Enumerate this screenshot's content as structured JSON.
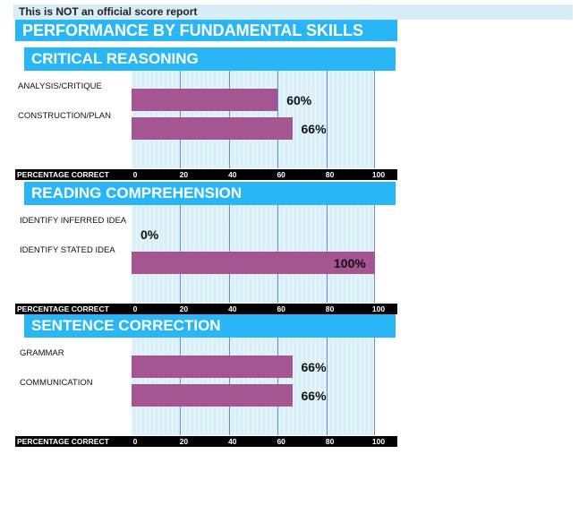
{
  "disclaimer": "This is NOT an official score report",
  "main_title": "PERFORMANCE BY FUNDAMENTAL SKILLS",
  "colors": {
    "header": "#29b6f6",
    "bar": "#a65593",
    "plot_bg": "#d9eff9"
  },
  "chart_data": [
    {
      "type": "bar",
      "orientation": "horizontal",
      "title": "CRITICAL REASONING",
      "categories": [
        "ANALYSIS/CRITIQUE",
        "CONSTRUCTION/PLAN"
      ],
      "values": [
        60,
        66
      ],
      "value_labels": [
        "60%",
        "66%"
      ],
      "xlabel": "PERCENTAGE CORRECT",
      "xlim": [
        0,
        100
      ],
      "ticks": [
        "0",
        "20",
        "40",
        "60",
        "80",
        "100"
      ],
      "grid": true
    },
    {
      "type": "bar",
      "orientation": "horizontal",
      "title": "READING COMPREHENSION",
      "categories": [
        "IDENTIFY INFERRED IDEA",
        "IDENTIFY STATED IDEA"
      ],
      "values": [
        0,
        100
      ],
      "value_labels": [
        "0%",
        "100%"
      ],
      "xlabel": "PERCENTAGE CORRECT",
      "xlim": [
        0,
        100
      ],
      "ticks": [
        "0",
        "20",
        "40",
        "60",
        "80",
        "100"
      ],
      "grid": true
    },
    {
      "type": "bar",
      "orientation": "horizontal",
      "title": "SENTENCE CORRECTION",
      "categories": [
        "GRAMMAR",
        "COMMUNICATION"
      ],
      "values": [
        66,
        66
      ],
      "value_labels": [
        "66%",
        "66%"
      ],
      "xlabel": "PERCENTAGE CORRECT",
      "xlim": [
        0,
        100
      ],
      "ticks": [
        "0",
        "20",
        "40",
        "60",
        "80",
        "100"
      ],
      "grid": true
    }
  ]
}
